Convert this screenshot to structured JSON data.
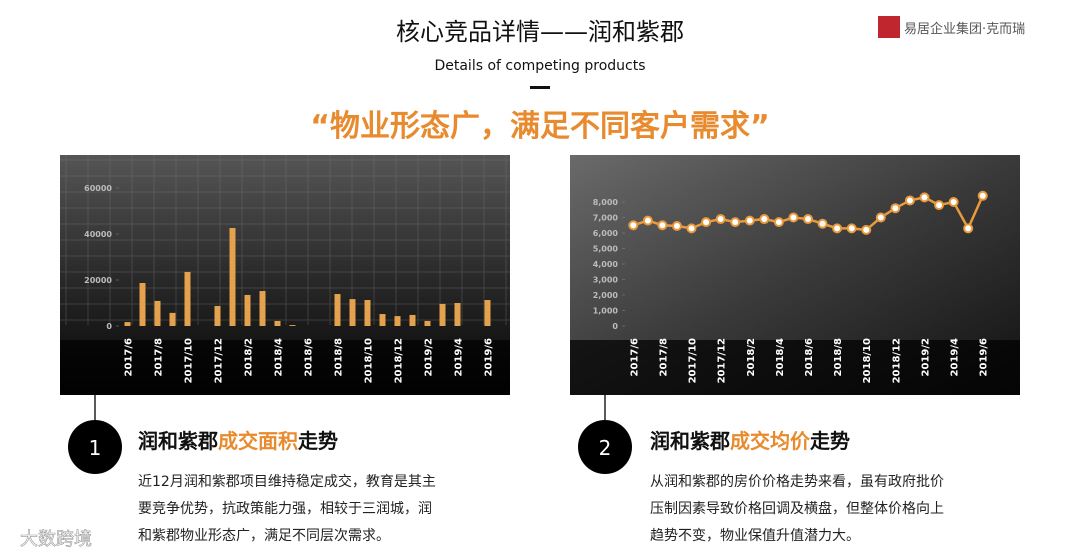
{
  "header": {
    "title": "核心竞品详情——润和紫郡",
    "subtitle": "Details of competing products",
    "slogan": "“物业形态广，满足不同客户需求”",
    "logo": "易居企业集团·克而瑞"
  },
  "chart_data": [
    {
      "type": "bar",
      "categories": [
        "2017/6",
        null,
        "2017/8",
        null,
        "2017/10",
        null,
        "2017/12",
        null,
        "2018/2",
        null,
        "2018/4",
        null,
        "2018/6",
        null,
        "2018/8",
        null,
        "2018/10",
        null,
        "2018/12",
        null,
        "2019/2",
        null,
        "2019/4",
        null,
        "2019/6"
      ],
      "values": [
        1700,
        18700,
        10900,
        5700,
        23500,
        0,
        8700,
        42600,
        13500,
        15200,
        2200,
        400,
        0,
        0,
        13900,
        11700,
        11300,
        5200,
        4300,
        4800,
        2200,
        9600,
        10000,
        0,
        11300
      ],
      "color": "#e4a24f",
      "ylim": [
        0,
        65000
      ],
      "yticks": [
        0,
        20000,
        40000,
        60000
      ]
    },
    {
      "type": "line",
      "categories": [
        "2017/6",
        null,
        "2017/8",
        null,
        "2017/10",
        null,
        "2017/12",
        null,
        "2018/2",
        null,
        "2018/4",
        null,
        "2018/6",
        null,
        "2018/8",
        null,
        "2018/10",
        null,
        "2018/12",
        null,
        "2019/2",
        null,
        "2019/4",
        null,
        "2019/6"
      ],
      "values": [
        6500,
        6800,
        6500,
        6450,
        6300,
        6700,
        6900,
        6700,
        6800,
        6900,
        6700,
        7000,
        6900,
        6600,
        6300,
        6300,
        6200,
        7000,
        7600,
        8100,
        8300,
        7800,
        8000,
        6300,
        8400
      ],
      "color": "#e89a3c",
      "ylim": [
        0,
        8500
      ],
      "yticks": [
        0,
        {
          "value": 1000,
          "label": "1,000"
        },
        {
          "value": 2000,
          "label": "2,000"
        },
        {
          "value": 3000,
          "label": "3,000"
        },
        {
          "value": 4000,
          "label": "4,000"
        },
        {
          "value": 5000,
          "label": "5,000"
        },
        {
          "value": 6000,
          "label": "6,000"
        },
        {
          "value": 7000,
          "label": "7,000"
        },
        {
          "value": 8000,
          "label": "8,000"
        }
      ]
    }
  ],
  "sections": [
    {
      "number": 1,
      "heading": [
        "润和紫郡",
        "成交面积",
        "走势"
      ],
      "body": [
        "近12月润和紫郡项目维持稳定成交，教育是其主",
        "要竞争优势，抗政策能力强，相较于三润城，润",
        "和紫郡物业形态广，满足不同层次需求。"
      ]
    },
    {
      "number": 2,
      "heading": [
        "润和紫郡",
        "成交均价",
        "走势"
      ],
      "body": [
        "从润和紫郡的房价价格走势来看，虽有政府批价",
        "压制因素导致价格回调及横盘，但整体价格向上",
        "趋势不变，物业保值升值潜力大。"
      ]
    }
  ],
  "watermark": "大数跨境"
}
